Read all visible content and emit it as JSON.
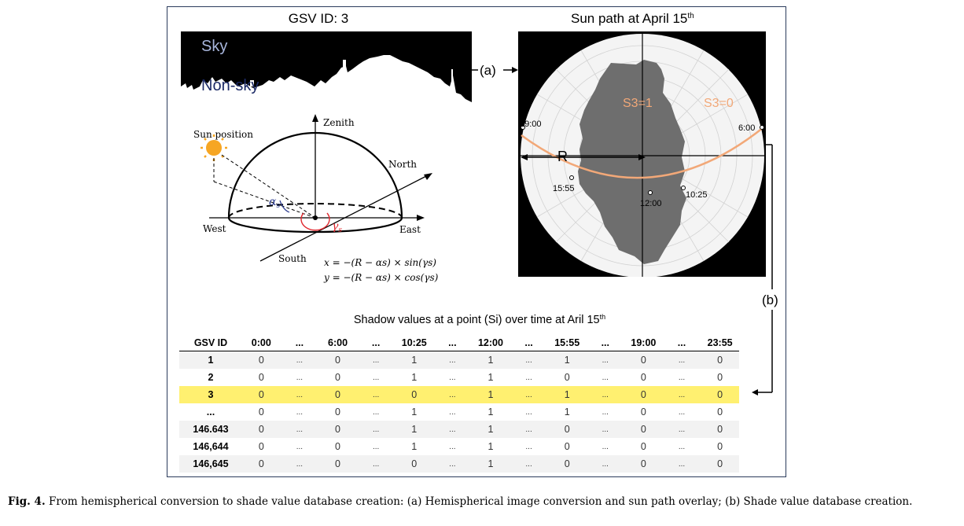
{
  "gsv_panel": {
    "title": "GSV ID: 3",
    "sky_label": "Sky",
    "nonsky_label": "Non-sky"
  },
  "diagram": {
    "sun_position": "Sun position",
    "zenith": "Zenith",
    "north": "North",
    "west": "West",
    "east": "East",
    "south": "South",
    "alpha": "α",
    "alpha_sub": "s",
    "gamma": "γ",
    "gamma_sub": "s",
    "eq_x": "x = −(R − αs) × sin(γs)",
    "eq_y": "y = −(R − αs) × cos(γs)"
  },
  "sunpath": {
    "title_main": "Sun path at April 15",
    "title_sup": "th",
    "s3_eq_1": "S3=1",
    "s3_eq_0": "S3=0",
    "r_label": "R",
    "times": [
      "19:00",
      "6:00",
      "15:55",
      "12:00",
      "10:25"
    ]
  },
  "arrows": {
    "a": "(a)",
    "b": "(b)"
  },
  "table": {
    "title_main": "Shadow values at a point (Si) over time at Aril 15",
    "title_sup": "th",
    "headers": [
      "GSV ID",
      "0:00",
      "...",
      "6:00",
      "...",
      "10:25",
      "...",
      "12:00",
      "...",
      "15:55",
      "...",
      "19:00",
      "...",
      "23:55"
    ],
    "rows": [
      [
        "1",
        "0",
        "...",
        "0",
        "...",
        "1",
        "...",
        "1",
        "...",
        "1",
        "...",
        "0",
        "...",
        "0"
      ],
      [
        "2",
        "0",
        "...",
        "0",
        "...",
        "1",
        "...",
        "1",
        "...",
        "0",
        "...",
        "0",
        "...",
        "0"
      ],
      [
        "3",
        "0",
        "...",
        "0",
        "...",
        "0",
        "...",
        "1",
        "...",
        "1",
        "...",
        "0",
        "...",
        "0"
      ],
      [
        "...",
        "0",
        "...",
        "0",
        "...",
        "1",
        "...",
        "1",
        "...",
        "1",
        "...",
        "0",
        "...",
        "0"
      ],
      [
        "146.643",
        "0",
        "...",
        "0",
        "...",
        "1",
        "...",
        "1",
        "...",
        "0",
        "...",
        "0",
        "...",
        "0"
      ],
      [
        "146,644",
        "0",
        "...",
        "0",
        "...",
        "1",
        "...",
        "1",
        "...",
        "0",
        "...",
        "0",
        "...",
        "0"
      ],
      [
        "146,645",
        "0",
        "...",
        "0",
        "...",
        "0",
        "...",
        "1",
        "...",
        "0",
        "...",
        "0",
        "...",
        "0"
      ]
    ],
    "highlight_row": 2,
    "highlight_color": "#fff070"
  },
  "caption": {
    "label": "Fig. 4.",
    "text": "From hemispherical conversion to shade value database creation: (a) Hemispherical image conversion and sun path overlay; (b) Shade value database creation."
  },
  "colors": {
    "sunpath_curve": "#f2a878",
    "obstruction": "#6e6e6e",
    "gamma_arc": "#e0282e",
    "alpha_text": "#2b3a8e"
  }
}
